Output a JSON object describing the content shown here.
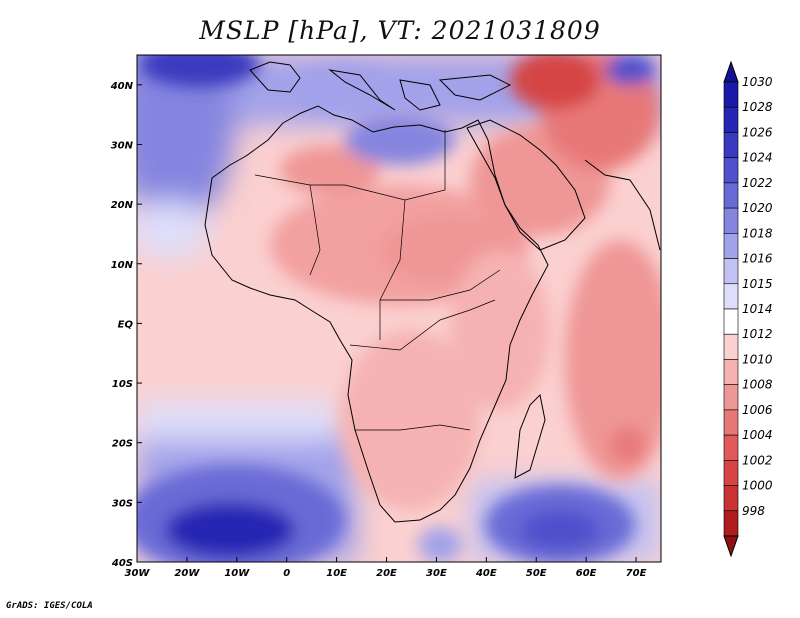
{
  "figure": {
    "title": "MSLP [hPa], VT: 2021031809",
    "credit": "GrADS: IGES/COLA",
    "variable": "MSLP",
    "units": "hPa",
    "valid_time": "2021031809"
  },
  "map": {
    "lon_range": [
      -30,
      75
    ],
    "lat_range": [
      -40,
      45
    ],
    "lon_ticks": [
      {
        "value": -30,
        "label": "30W"
      },
      {
        "value": -20,
        "label": "20W"
      },
      {
        "value": -10,
        "label": "10W"
      },
      {
        "value": 0,
        "label": "0"
      },
      {
        "value": 10,
        "label": "10E"
      },
      {
        "value": 20,
        "label": "20E"
      },
      {
        "value": 30,
        "label": "30E"
      },
      {
        "value": 40,
        "label": "40E"
      },
      {
        "value": 50,
        "label": "50E"
      },
      {
        "value": 60,
        "label": "60E"
      },
      {
        "value": 70,
        "label": "70E"
      }
    ],
    "lat_ticks": [
      {
        "value": 40,
        "label": "40N"
      },
      {
        "value": 30,
        "label": "30N"
      },
      {
        "value": 20,
        "label": "20N"
      },
      {
        "value": 10,
        "label": "10N"
      },
      {
        "value": 0,
        "label": "EQ"
      },
      {
        "value": -10,
        "label": "10S"
      },
      {
        "value": -20,
        "label": "20S"
      },
      {
        "value": -30,
        "label": "30S"
      },
      {
        "value": -40,
        "label": "40S"
      }
    ]
  },
  "colorbar": {
    "levels": [
      {
        "label": "1030",
        "color": "#1a1aa8"
      },
      {
        "label": "1028",
        "color": "#2626b4"
      },
      {
        "label": "1026",
        "color": "#3a3ac0"
      },
      {
        "label": "1024",
        "color": "#5050cc"
      },
      {
        "label": "1022",
        "color": "#6a6ad6"
      },
      {
        "label": "1020",
        "color": "#8585e0"
      },
      {
        "label": "1018",
        "color": "#a2a2ea"
      },
      {
        "label": "1016",
        "color": "#c2c2f2"
      },
      {
        "label": "1015",
        "color": "#dedefa"
      },
      {
        "label": "1014",
        "color": "#ffffff"
      },
      {
        "label": "1012",
        "color": "#fbd0d0"
      },
      {
        "label": "1010",
        "color": "#f6b2b2"
      },
      {
        "label": "1008",
        "color": "#ef9696"
      },
      {
        "label": "1006",
        "color": "#e87878"
      },
      {
        "label": "1004",
        "color": "#e05a5a"
      },
      {
        "label": "1002",
        "color": "#d64444"
      },
      {
        "label": "1000",
        "color": "#c83232"
      },
      {
        "label": "998",
        "color": "#b01c1c"
      }
    ],
    "top_color": "#121292",
    "bottom_color": "#8e1010"
  },
  "fields": [
    {
      "name": "sub-saharan-low",
      "value": 1008,
      "color": "#f6b2b2"
    },
    {
      "name": "sahara-low",
      "value": 1010,
      "color": "#f3a0a0"
    },
    {
      "name": "arabian-low",
      "value": 1008,
      "color": "#ef9696"
    },
    {
      "name": "iran-low",
      "value": 1002,
      "color": "#d64444"
    },
    {
      "name": "mediterranean-high",
      "value": 1020,
      "color": "#8585e0"
    },
    {
      "name": "atlantic-high-north",
      "value": 1026,
      "color": "#3a3ac0"
    },
    {
      "name": "st-helena-high",
      "value": 1028,
      "color": "#2626b4"
    },
    {
      "name": "mascarene-high",
      "value": 1024,
      "color": "#5050cc"
    },
    {
      "name": "indian-ocean-low",
      "value": 1006,
      "color": "#e87878"
    }
  ]
}
